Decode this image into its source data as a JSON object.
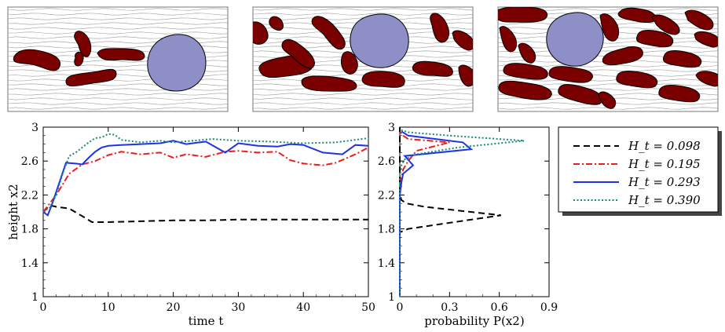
{
  "snapshots": [
    {
      "label": "H_t = 0.098"
    },
    {
      "label": "H_t = 0.195"
    },
    {
      "label": "H_t = 0.390"
    }
  ],
  "colors": {
    "droplet": "#7a0000",
    "particle": "#8f8fc8",
    "streamline": "#9a9a9a",
    "s1": "#000000",
    "s2": "#ee1c1c",
    "s3": "#1e32e6",
    "s4": "#168a7a"
  },
  "chart_data": [
    {
      "type": "line",
      "xlabel": "time t",
      "ylabel": "height x2",
      "xlim": [
        0,
        50
      ],
      "ylim": [
        1,
        3
      ],
      "xticks": [
        "0",
        "10",
        "20",
        "30",
        "40",
        "50"
      ],
      "yticks": [
        "1",
        "1.4",
        "1.8",
        "2.2",
        "2.6",
        "3"
      ],
      "grid": false,
      "series": [
        {
          "name": "H_t = 0.098",
          "style": "dashed",
          "x": [
            0,
            1,
            2,
            4,
            6,
            7.5,
            10,
            15,
            20,
            25,
            30,
            35,
            40,
            45,
            50
          ],
          "y": [
            2.0,
            2.08,
            2.06,
            2.04,
            1.95,
            1.88,
            1.88,
            1.89,
            1.9,
            1.9,
            1.91,
            1.91,
            1.91,
            1.91,
            1.91
          ]
        },
        {
          "name": "H_t = 0.195",
          "style": "dashdot",
          "x": [
            0,
            2,
            4,
            6,
            8,
            10,
            12,
            15,
            18,
            20,
            22,
            25,
            28,
            30,
            33,
            36,
            38,
            40,
            43,
            45,
            48,
            50
          ],
          "y": [
            2.0,
            2.2,
            2.45,
            2.56,
            2.6,
            2.67,
            2.71,
            2.68,
            2.7,
            2.64,
            2.68,
            2.65,
            2.71,
            2.72,
            2.7,
            2.71,
            2.61,
            2.57,
            2.55,
            2.58,
            2.68,
            2.76
          ]
        },
        {
          "name": "H_t = 0.293",
          "style": "solid",
          "x": [
            0,
            0.7,
            1.5,
            2.5,
            3.5,
            5,
            6,
            7,
            8,
            9,
            10,
            12,
            15,
            18,
            20,
            22,
            25,
            28,
            30,
            33,
            36,
            38,
            40,
            43,
            46,
            48,
            50
          ],
          "y": [
            2.0,
            1.96,
            2.12,
            2.35,
            2.58,
            2.57,
            2.56,
            2.64,
            2.71,
            2.76,
            2.78,
            2.79,
            2.8,
            2.81,
            2.84,
            2.8,
            2.83,
            2.7,
            2.81,
            2.78,
            2.77,
            2.8,
            2.79,
            2.7,
            2.68,
            2.79,
            2.78
          ]
        },
        {
          "name": "H_t = 0.390",
          "style": "dotted",
          "x": [
            0,
            1,
            2,
            3,
            4,
            5,
            6,
            7,
            8,
            9,
            10,
            11,
            12,
            15,
            18,
            20,
            23,
            26,
            30,
            35,
            40,
            45,
            50
          ],
          "y": [
            2.0,
            2.05,
            2.2,
            2.45,
            2.66,
            2.7,
            2.76,
            2.82,
            2.87,
            2.88,
            2.92,
            2.91,
            2.85,
            2.82,
            2.84,
            2.82,
            2.84,
            2.86,
            2.84,
            2.83,
            2.81,
            2.82,
            2.87
          ]
        }
      ]
    },
    {
      "type": "line",
      "xlabel": "probability P(x2)",
      "xlim": [
        0,
        0.9
      ],
      "ylim": [
        1,
        3
      ],
      "xticks": [
        "0",
        "0.3",
        "0.6",
        "0.9"
      ],
      "yticks": [
        "1",
        "1.4",
        "1.8",
        "2.2",
        "2.6",
        "3"
      ],
      "grid": false,
      "series": [
        {
          "name": "H_t = 0.098",
          "style": "dashed",
          "p": [
            0,
            0,
            0,
            0.05,
            0.61,
            0.15,
            0.04,
            0.01,
            0,
            0
          ],
          "y": [
            1.0,
            1.6,
            1.76,
            1.8,
            1.96,
            2.06,
            2.1,
            2.14,
            2.2,
            3.0
          ]
        },
        {
          "name": "H_t = 0.195",
          "style": "dashdot",
          "p": [
            0,
            0,
            0.01,
            0.02,
            0.05,
            0.1,
            0.3,
            0.05,
            0.02,
            0
          ],
          "y": [
            1.0,
            2.2,
            2.4,
            2.5,
            2.6,
            2.72,
            2.82,
            2.86,
            2.9,
            2.95
          ]
        },
        {
          "name": "H_t = 0.293",
          "style": "solid",
          "p": [
            0,
            0,
            0.01,
            0.02,
            0.08,
            0.03,
            0.43,
            0.38,
            0.05,
            0.01
          ],
          "y": [
            1.0,
            2.2,
            2.35,
            2.45,
            2.55,
            2.66,
            2.74,
            2.82,
            2.9,
            2.95
          ]
        },
        {
          "name": "H_t = 0.390",
          "style": "dotted",
          "p": [
            0,
            0,
            0.01,
            0.03,
            0.1,
            0.35,
            0.75,
            0.3,
            0.05,
            0
          ],
          "y": [
            1.0,
            2.4,
            2.55,
            2.62,
            2.68,
            2.76,
            2.84,
            2.9,
            2.94,
            2.97
          ]
        }
      ]
    }
  ],
  "legend": [
    {
      "text": "H_t = 0.098",
      "style": "dashed",
      "color": "#000000"
    },
    {
      "text": "H_t = 0.195",
      "style": "dashdot",
      "color": "#ee1c1c"
    },
    {
      "text": "H_t = 0.293",
      "style": "solid",
      "color": "#1e32e6"
    },
    {
      "text": "H_t = 0.390",
      "style": "dotted",
      "color": "#168a7a"
    }
  ]
}
